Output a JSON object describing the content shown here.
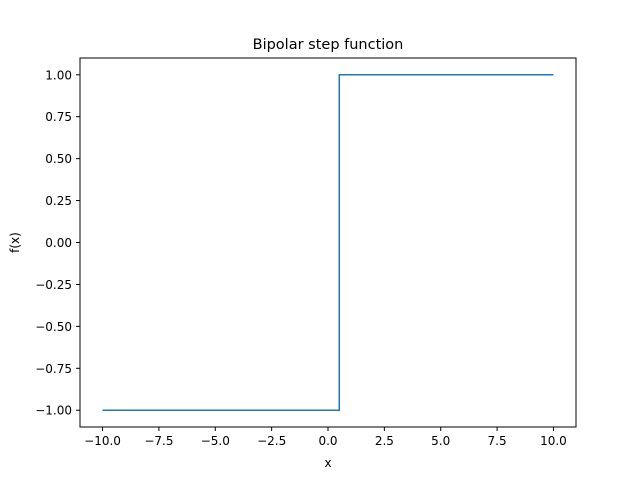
{
  "chart_data": {
    "type": "line",
    "title": "Bipolar step function",
    "xlabel": "x",
    "ylabel": "f(x)",
    "xlim": [
      -11.0,
      11.0
    ],
    "ylim": [
      -1.1,
      1.1
    ],
    "x_ticks": [
      -10.0,
      -7.5,
      -5.0,
      -2.5,
      0.0,
      2.5,
      5.0,
      7.5,
      10.0
    ],
    "x_tick_labels": [
      "−10.0",
      "−7.5",
      "−5.0",
      "−2.5",
      "0.0",
      "2.5",
      "5.0",
      "7.5",
      "10.0"
    ],
    "y_ticks": [
      -1.0,
      -0.75,
      -0.5,
      -0.25,
      0.0,
      0.25,
      0.5,
      0.75,
      1.0
    ],
    "y_tick_labels": [
      "−1.00",
      "−0.75",
      "−0.50",
      "−0.25",
      "0.00",
      "0.25",
      "0.50",
      "0.75",
      "1.00"
    ],
    "grid": false,
    "series": [
      {
        "color": "#1f77b4",
        "x": [
          -10.0,
          0.5,
          0.5,
          10.0
        ],
        "y": [
          -1.0,
          -1.0,
          1.0,
          1.0
        ]
      }
    ]
  }
}
